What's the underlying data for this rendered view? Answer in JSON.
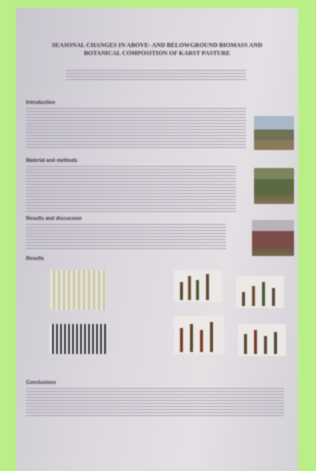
{
  "poster": {
    "title": "SEASONAL CHANGES IN ABOVE- AND BELOWGROUND BIOMASS AND BOTANICAL COMPOSITION OF KARST PASTURE",
    "sections": [
      "Introduction",
      "Material and methods",
      "Results and discussion",
      "Results",
      "Conclusions"
    ]
  }
}
